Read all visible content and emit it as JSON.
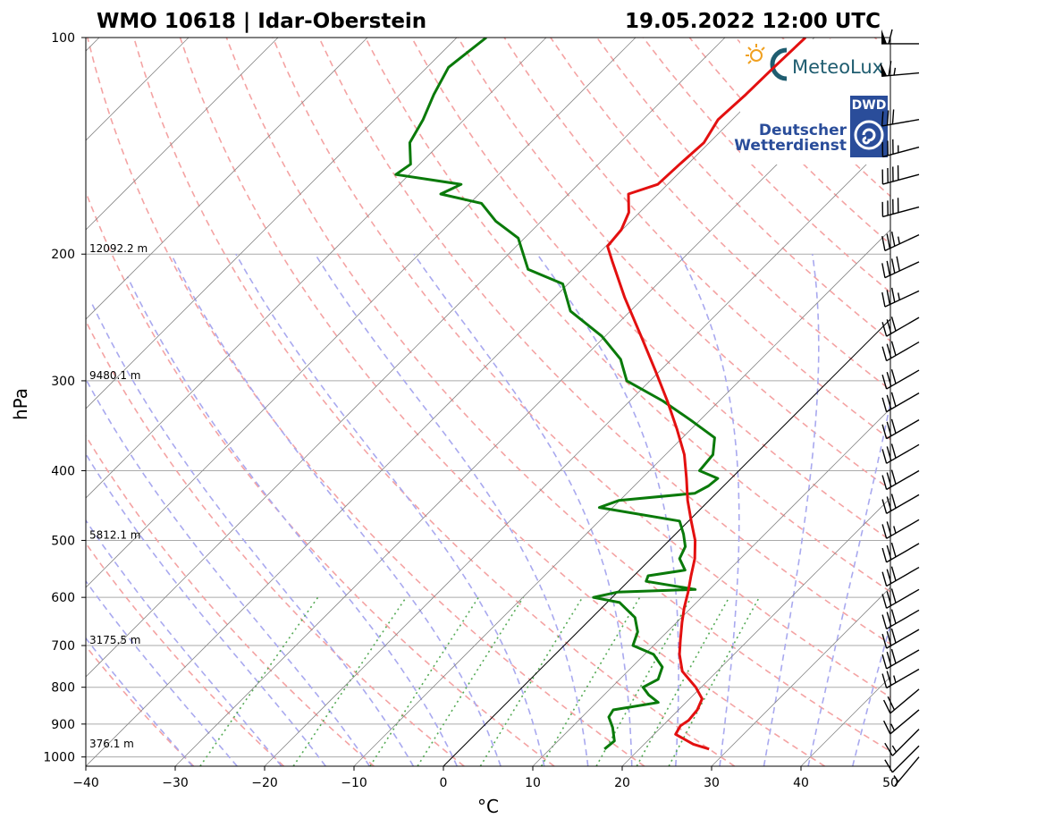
{
  "header": {
    "station": "WMO 10618 | Idar-Oberstein",
    "datetime": "19.05.2022 12:00 UTC"
  },
  "logos": {
    "meteolux": "MeteoLux",
    "dwd_abbrev": "DWD",
    "dwd_line1": "Deutscher",
    "dwd_line2": "Wetterdienst"
  },
  "colors": {
    "temperature": "#e31010",
    "dewpoint": "#0a7a0a",
    "dry_adiabat": "#f4a3a3",
    "moist_adiabat": "#a9a9ef",
    "mixing_ratio": "#55aa55",
    "isotherm": "#888888",
    "grid": "#aaaaaa"
  },
  "chart_data": {
    "type": "skew-t",
    "title": "WMO 10618 | Idar-Oberstein",
    "xlabel": "°C",
    "ylabel": "hPa",
    "xlim": [
      -40,
      50
    ],
    "ylim": [
      1030,
      100
    ],
    "x_ticks": [
      -40,
      -30,
      -20,
      -10,
      0,
      10,
      20,
      30,
      40,
      50
    ],
    "x_tick_labels": [
      "−40",
      "−30",
      "−20",
      "−10",
      "0",
      "10",
      "20",
      "30",
      "40",
      "50"
    ],
    "y_ticks": [
      100,
      200,
      300,
      400,
      500,
      600,
      700,
      800,
      900,
      1000
    ],
    "y_tick_labels": [
      "100",
      "200",
      "300",
      "400",
      "500",
      "600",
      "700",
      "800",
      "900",
      "1000"
    ],
    "height_annotations": [
      {
        "pressure": 200,
        "label": "12092.2 m"
      },
      {
        "pressure": 300,
        "label": "9480.1 m"
      },
      {
        "pressure": 500,
        "label": "5812.1 m"
      },
      {
        "pressure": 700,
        "label": "3175.5 m"
      },
      {
        "pressure": 975,
        "label": "376.1 m"
      }
    ],
    "temperature_profile": {
      "name": "Temperature",
      "points": [
        [
          975,
          27.8
        ],
        [
          960,
          25.5
        ],
        [
          930,
          22.4
        ],
        [
          905,
          22.0
        ],
        [
          890,
          22.3
        ],
        [
          860,
          22.1
        ],
        [
          830,
          21.4
        ],
        [
          800,
          19.4
        ],
        [
          760,
          16.1
        ],
        [
          720,
          13.9
        ],
        [
          690,
          12.5
        ],
        [
          650,
          10.6
        ],
        [
          620,
          9.2
        ],
        [
          590,
          7.9
        ],
        [
          560,
          6.4
        ],
        [
          530,
          4.9
        ],
        [
          500,
          2.9
        ],
        [
          470,
          0.3
        ],
        [
          440,
          -2.4
        ],
        [
          410,
          -5.0
        ],
        [
          380,
          -7.9
        ],
        [
          350,
          -11.6
        ],
        [
          320,
          -15.8
        ],
        [
          290,
          -20.6
        ],
        [
          260,
          -26.0
        ],
        [
          230,
          -32.1
        ],
        [
          205,
          -37.5
        ],
        [
          195,
          -39.8
        ],
        [
          185,
          -40.1
        ],
        [
          175,
          -41.2
        ],
        [
          165,
          -43.3
        ],
        [
          160,
          -41.1
        ],
        [
          150,
          -40.9
        ],
        [
          140,
          -40.6
        ],
        [
          130,
          -41.6
        ],
        [
          120,
          -41.3
        ],
        [
          110,
          -41.2
        ],
        [
          100,
          -41.0
        ]
      ]
    },
    "dewpoint_profile": {
      "name": "Dewpoint",
      "points": [
        [
          975,
          16.1
        ],
        [
          950,
          16.3
        ],
        [
          910,
          14.6
        ],
        [
          880,
          13.0
        ],
        [
          860,
          12.7
        ],
        [
          840,
          16.9
        ],
        [
          820,
          15.0
        ],
        [
          800,
          13.5
        ],
        [
          780,
          14.3
        ],
        [
          750,
          13.4
        ],
        [
          720,
          11.0
        ],
        [
          700,
          7.7
        ],
        [
          670,
          6.7
        ],
        [
          640,
          4.8
        ],
        [
          610,
          1.4
        ],
        [
          600,
          -2.1
        ],
        [
          590,
          0.0
        ],
        [
          585,
          8.4
        ],
        [
          570,
          2.0
        ],
        [
          560,
          1.6
        ],
        [
          550,
          5.1
        ],
        [
          530,
          3.2
        ],
        [
          510,
          2.5
        ],
        [
          490,
          0.9
        ],
        [
          470,
          -1.0
        ],
        [
          450,
          -11.5
        ],
        [
          440,
          -10.1
        ],
        [
          430,
          -2.4
        ],
        [
          420,
          -1.7
        ],
        [
          410,
          -1.5
        ],
        [
          400,
          -4.4
        ],
        [
          380,
          -4.7
        ],
        [
          360,
          -6.4
        ],
        [
          340,
          -11.1
        ],
        [
          320,
          -16.3
        ],
        [
          300,
          -22.6
        ],
        [
          280,
          -25.7
        ],
        [
          260,
          -30.4
        ],
        [
          240,
          -36.7
        ],
        [
          220,
          -40.6
        ],
        [
          210,
          -46.1
        ],
        [
          190,
          -50.7
        ],
        [
          180,
          -55.1
        ],
        [
          170,
          -58.7
        ],
        [
          165,
          -64.3
        ],
        [
          160,
          -63.1
        ],
        [
          155,
          -71.5
        ],
        [
          150,
          -71.0
        ],
        [
          140,
          -73.5
        ],
        [
          130,
          -74.6
        ],
        [
          120,
          -76.2
        ],
        [
          110,
          -77.6
        ],
        [
          100,
          -76.7
        ]
      ]
    },
    "wind_barbs": {
      "description": "Wind barbs along right edge, speeds in knots",
      "barbs": [
        {
          "pressure": 102,
          "dir": 270,
          "speed": 60
        },
        {
          "pressure": 112,
          "dir": 265,
          "speed": 65
        },
        {
          "pressure": 130,
          "dir": 260,
          "speed": 30
        },
        {
          "pressure": 142,
          "dir": 255,
          "speed": 35
        },
        {
          "pressure": 155,
          "dir": 255,
          "speed": 40
        },
        {
          "pressure": 172,
          "dir": 255,
          "speed": 40
        },
        {
          "pressure": 188,
          "dir": 245,
          "speed": 35
        },
        {
          "pressure": 205,
          "dir": 245,
          "speed": 40
        },
        {
          "pressure": 225,
          "dir": 245,
          "speed": 35
        },
        {
          "pressure": 245,
          "dir": 240,
          "speed": 30
        },
        {
          "pressure": 265,
          "dir": 240,
          "speed": 30
        },
        {
          "pressure": 290,
          "dir": 240,
          "speed": 30
        },
        {
          "pressure": 312,
          "dir": 240,
          "speed": 30
        },
        {
          "pressure": 340,
          "dir": 240,
          "speed": 30
        },
        {
          "pressure": 368,
          "dir": 240,
          "speed": 30
        },
        {
          "pressure": 400,
          "dir": 240,
          "speed": 30
        },
        {
          "pressure": 432,
          "dir": 240,
          "speed": 30
        },
        {
          "pressure": 468,
          "dir": 240,
          "speed": 25
        },
        {
          "pressure": 505,
          "dir": 240,
          "speed": 30
        },
        {
          "pressure": 545,
          "dir": 240,
          "speed": 30
        },
        {
          "pressure": 585,
          "dir": 240,
          "speed": 30
        },
        {
          "pressure": 625,
          "dir": 240,
          "speed": 30
        },
        {
          "pressure": 665,
          "dir": 240,
          "speed": 30
        },
        {
          "pressure": 710,
          "dir": 240,
          "speed": 30
        },
        {
          "pressure": 755,
          "dir": 240,
          "speed": 25
        },
        {
          "pressure": 805,
          "dir": 230,
          "speed": 20
        },
        {
          "pressure": 860,
          "dir": 230,
          "speed": 15
        },
        {
          "pressure": 915,
          "dir": 225,
          "speed": 15
        },
        {
          "pressure": 965,
          "dir": 225,
          "speed": 10
        },
        {
          "pressure": 1000,
          "dir": 220,
          "speed": 5
        }
      ]
    }
  }
}
